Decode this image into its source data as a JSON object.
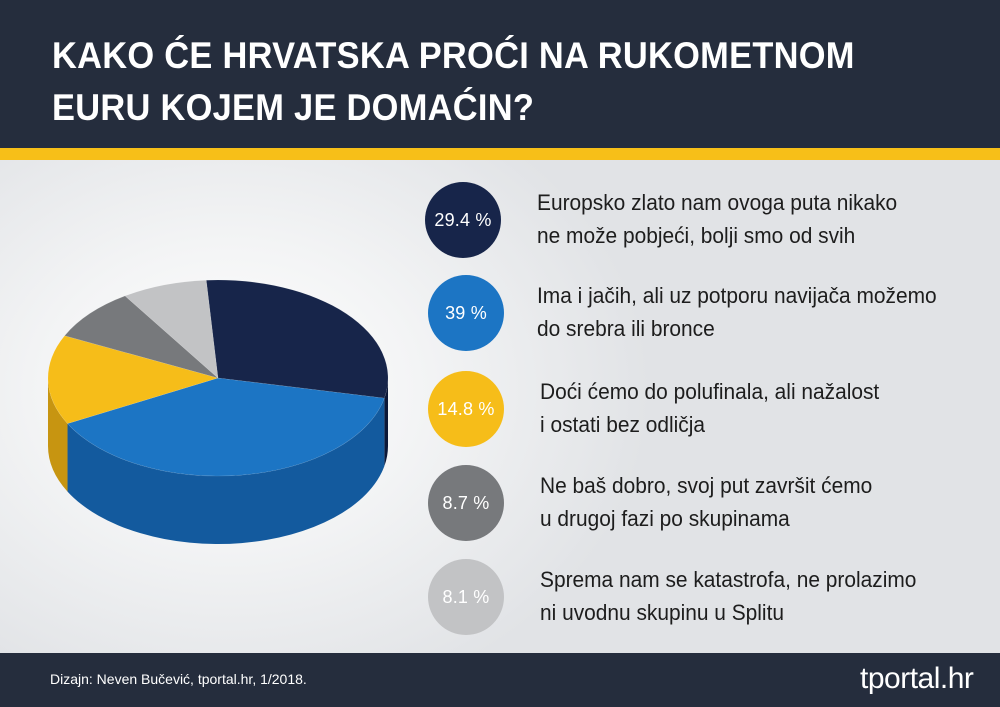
{
  "title": {
    "line1": "KAKO ĆE HRVATSKA PROĆI NA RUKOMETNOM",
    "line2": "EURU KOJEM JE DOMAĆIN?"
  },
  "colors": {
    "header_bg": "#252d3d",
    "accent_stripe": "#f7bf18"
  },
  "chart_data": {
    "type": "pie",
    "style": "3d",
    "title": "KAKO ĆE HRVATSKA PROĆI NA RUKOMETNOM EURU KOJEM JE DOMAĆIN?",
    "slices": [
      {
        "label": "Europsko zlato nam ovoga puta nikako ne može pobjeći, bolji smo od svih",
        "value": 29.4,
        "display": "29.4 %",
        "color": "#17254a",
        "side_color": "#0c1838"
      },
      {
        "label": "Ima i jačih, ali uz potporu navijača možemo do srebra ili bronce",
        "value": 39,
        "display": "39 %",
        "color": "#1c75c4",
        "side_color": "#135a9e"
      },
      {
        "label": "Doći ćemo do polufinala, ali nažalost i ostati bez odličja",
        "value": 14.8,
        "display": "14.8 %",
        "color": "#f6bd19",
        "side_color": "#c79511"
      },
      {
        "label": "Ne baš dobro, svoj put završit ćemo u drugoj fazi po skupinama",
        "value": 8.7,
        "display": "8.7 %",
        "color": "#77797c",
        "side_color": "#5a5c5f"
      },
      {
        "label": "Sprema nam se katastrofa, ne prolazimo ni uvodnu skupinu u Splitu",
        "value": 8.1,
        "display": "8.1 %",
        "color": "#c2c3c5",
        "side_color": "#9c9ea1"
      }
    ],
    "legend_position": "right"
  },
  "legend": [
    {
      "value": "29.4 %",
      "line1": "Europsko zlato nam ovoga puta nikako",
      "line2": "ne može pobjeći, bolji smo od svih",
      "color": "#17254a"
    },
    {
      "value": "39 %",
      "line1": "Ima i jačih, ali uz potporu navijača možemo",
      "line2": "do srebra ili bronce",
      "color": "#1c75c4"
    },
    {
      "value": "14.8 %",
      "line1": "Doći ćemo do polufinala, ali nažalost",
      "line2": "i ostati bez odličja",
      "color": "#f6bd19"
    },
    {
      "value": "8.7 %",
      "line1": "Ne baš dobro, svoj put završit ćemo",
      "line2": "u drugoj fazi po skupinama",
      "color": "#77797c"
    },
    {
      "value": "8.1 %",
      "line1": "Sprema nam se katastrofa, ne prolazimo",
      "line2": "ni uvodnu skupinu u Splitu",
      "color": "#c2c3c5"
    }
  ],
  "footer": {
    "credit": "Dizajn: Neven Bučević, tportal.hr, 1/2018.",
    "logo_main": "tportal",
    "logo_tld": ".hr"
  }
}
